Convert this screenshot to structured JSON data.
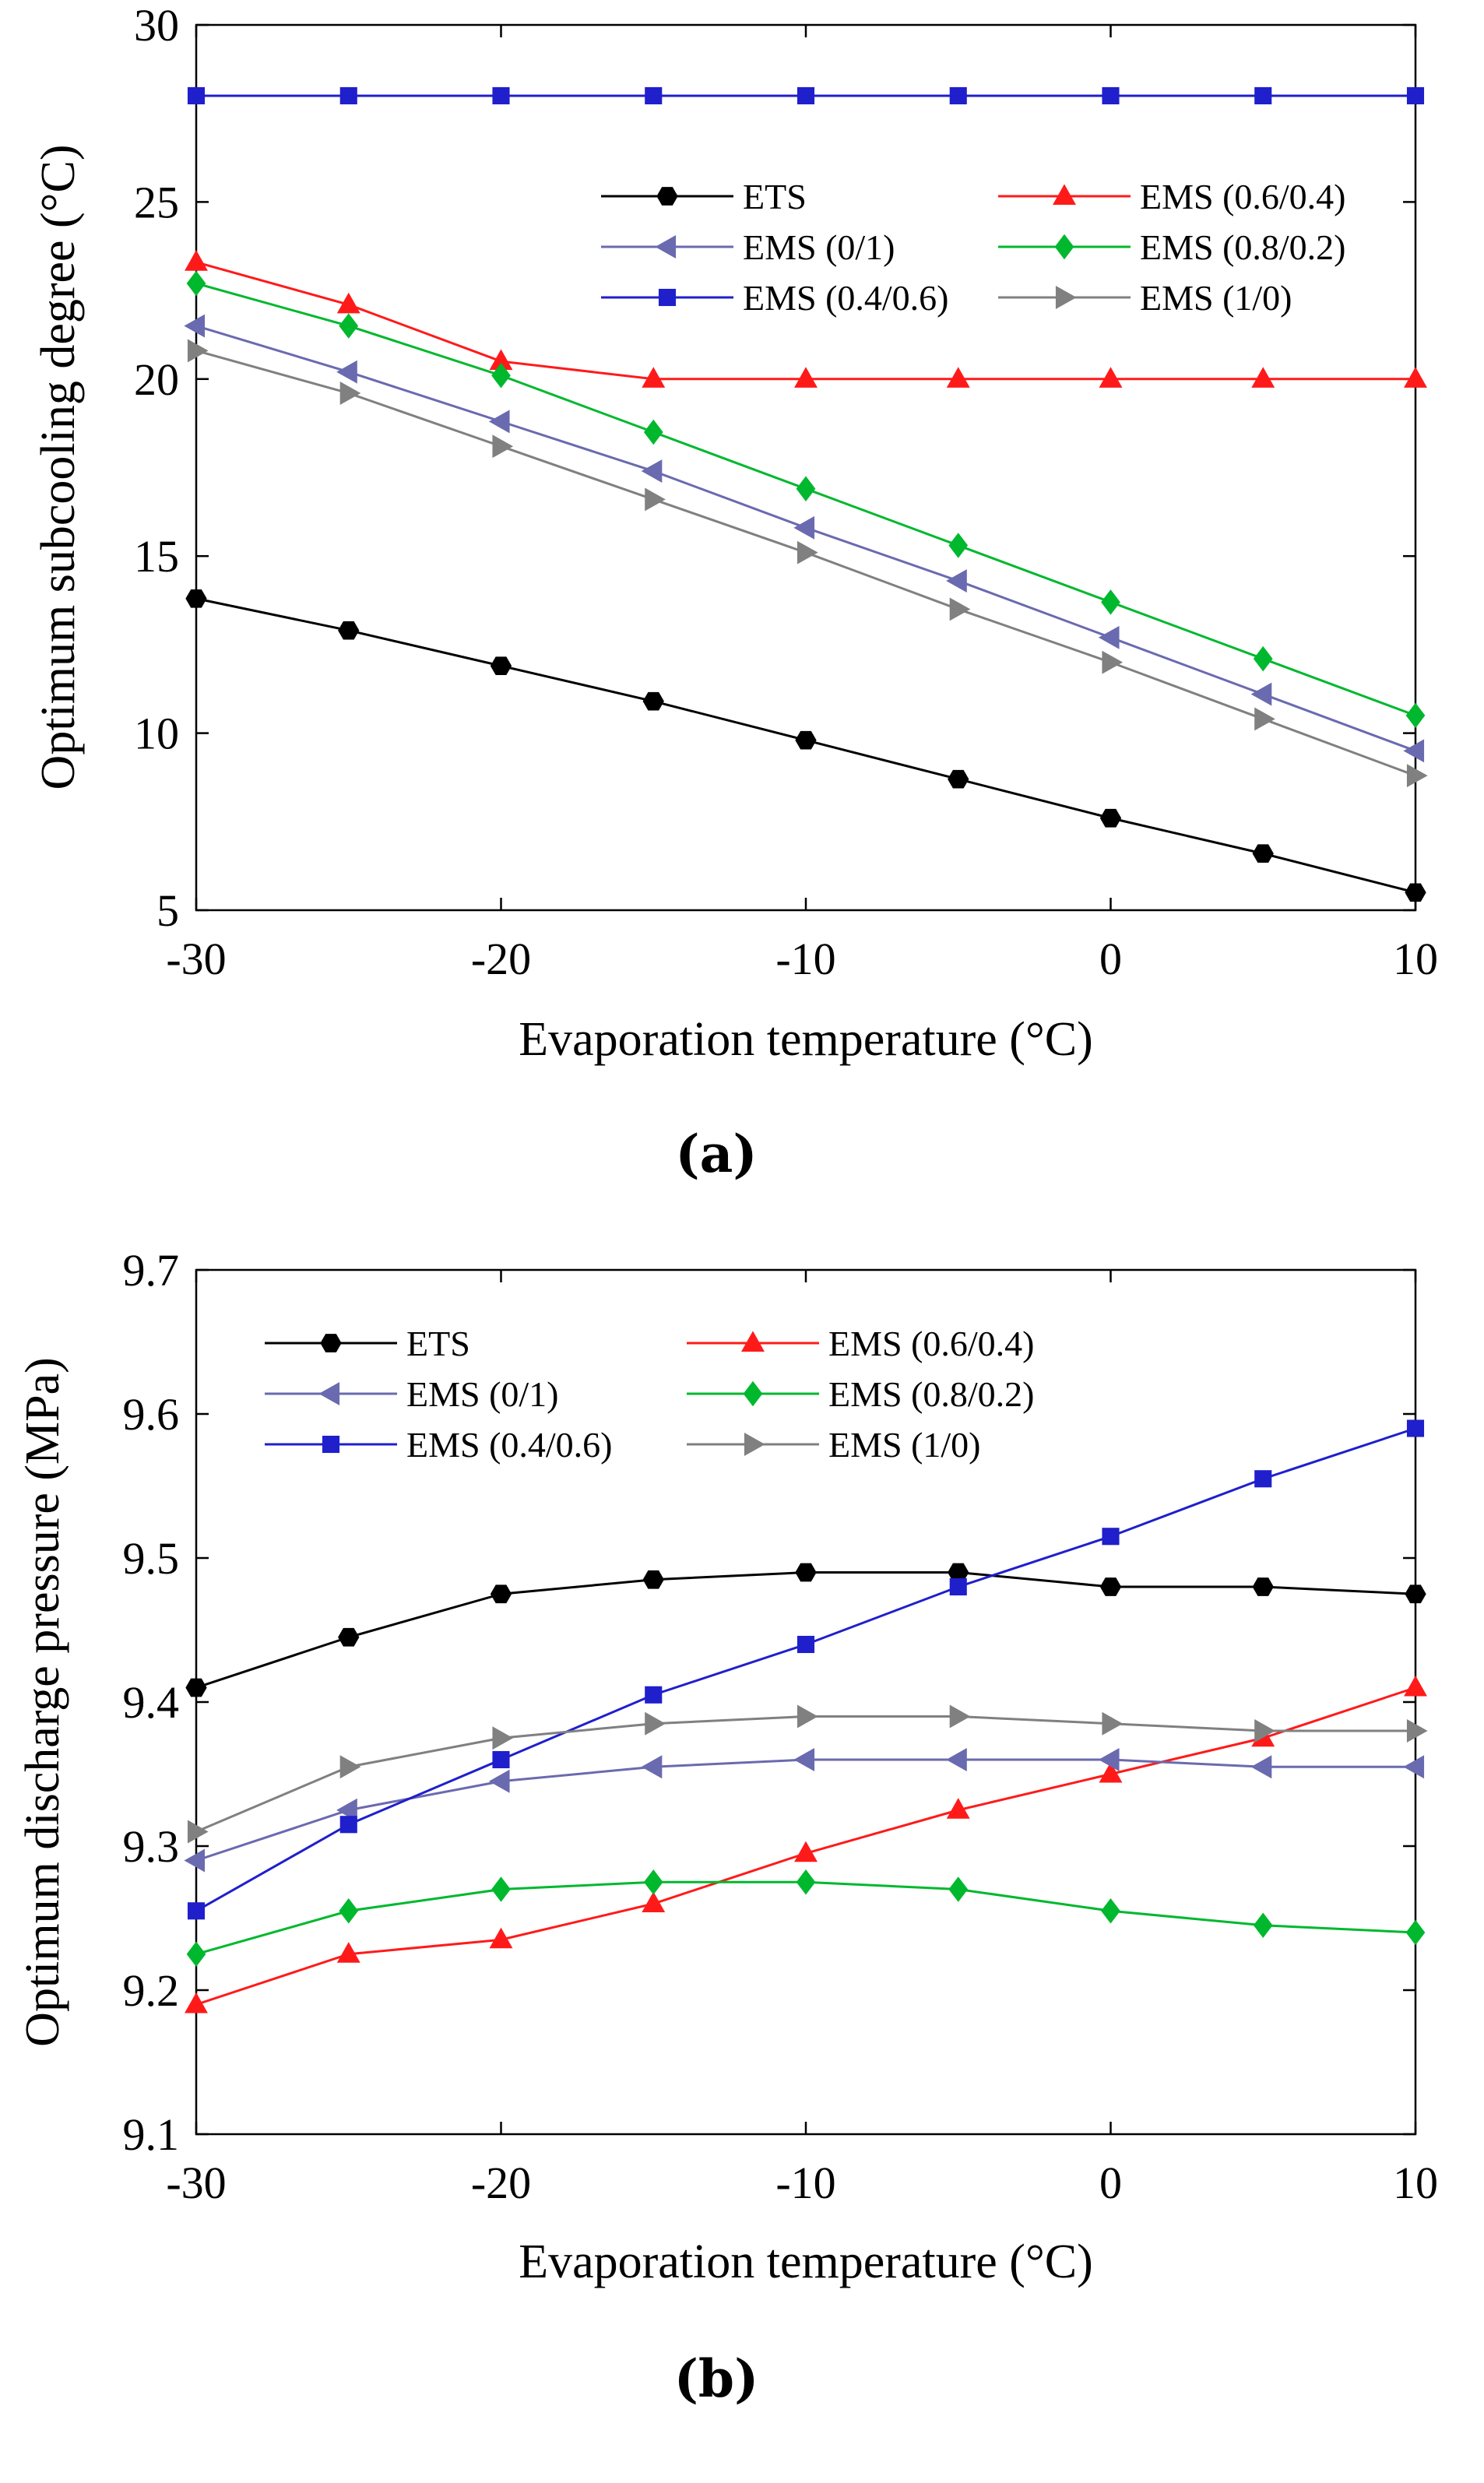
{
  "chart_data": [
    {
      "type": "line",
      "panel_label": "(a)",
      "xlabel": "Evaporation temperature (°C)",
      "ylabel": "Optimum subcooling degree (°C)",
      "xlim": [
        -30,
        10
      ],
      "ylim": [
        5,
        30
      ],
      "xticks": [
        -30,
        -20,
        -10,
        0,
        10
      ],
      "yticks": [
        5,
        10,
        15,
        20,
        25,
        30
      ],
      "x": [
        -30,
        -25,
        -20,
        -15,
        -10,
        -5,
        0,
        5,
        10
      ],
      "legend_position": "top-right",
      "series": [
        {
          "name": "ETS",
          "color": "#000000",
          "marker": "hexagon",
          "values": [
            13.8,
            12.9,
            11.9,
            10.9,
            9.8,
            8.7,
            7.6,
            6.6,
            5.5
          ]
        },
        {
          "name": "EMS (0.6/0.4)",
          "color": "#ff1a1a",
          "marker": "triangle-up",
          "values": [
            23.3,
            22.1,
            20.5,
            20.0,
            20.0,
            20.0,
            20.0,
            20.0,
            20.0
          ]
        },
        {
          "name": "EMS (0/1)",
          "color": "#6a6ab0",
          "marker": "triangle-left",
          "values": [
            21.5,
            20.2,
            18.8,
            17.4,
            15.8,
            14.3,
            12.7,
            11.1,
            9.5
          ]
        },
        {
          "name": "EMS (0.8/0.2)",
          "color": "#00b82e",
          "marker": "diamond",
          "values": [
            22.7,
            21.5,
            20.1,
            18.5,
            16.9,
            15.3,
            13.7,
            12.1,
            10.5
          ]
        },
        {
          "name": "EMS (0.4/0.6)",
          "color": "#1f1fcc",
          "marker": "square",
          "values": [
            28.0,
            28.0,
            28.0,
            28.0,
            28.0,
            28.0,
            28.0,
            28.0,
            28.0
          ]
        },
        {
          "name": "EMS (1/0)",
          "color": "#808080",
          "marker": "triangle-right",
          "values": [
            20.8,
            19.6,
            18.1,
            16.6,
            15.1,
            13.5,
            12.0,
            10.4,
            8.8
          ]
        }
      ]
    },
    {
      "type": "line",
      "panel_label": "(b)",
      "xlabel": "Evaporation temperature (°C)",
      "ylabel": "Optimum discharge pressure (MPa)",
      "xlim": [
        -30,
        10
      ],
      "ylim": [
        9.1,
        9.7
      ],
      "xticks": [
        -30,
        -20,
        -10,
        0,
        10
      ],
      "yticks": [
        9.1,
        9.2,
        9.3,
        9.4,
        9.5,
        9.6,
        9.7
      ],
      "x": [
        -30,
        -25,
        -20,
        -15,
        -10,
        -5,
        0,
        5,
        10
      ],
      "legend_position": "top-left",
      "series": [
        {
          "name": "ETS",
          "color": "#000000",
          "marker": "hexagon",
          "values": [
            9.41,
            9.445,
            9.475,
            9.485,
            9.49,
            9.49,
            9.48,
            9.48,
            9.475
          ]
        },
        {
          "name": "EMS (0.6/0.4)",
          "color": "#ff1a1a",
          "marker": "triangle-up",
          "values": [
            9.19,
            9.225,
            9.235,
            9.26,
            9.295,
            9.325,
            9.35,
            9.375,
            9.41
          ]
        },
        {
          "name": "EMS (0/1)",
          "color": "#6a6ab0",
          "marker": "triangle-left",
          "values": [
            9.29,
            9.325,
            9.345,
            9.355,
            9.36,
            9.36,
            9.36,
            9.355,
            9.355
          ]
        },
        {
          "name": "EMS (0.8/0.2)",
          "color": "#00b82e",
          "marker": "diamond",
          "values": [
            9.225,
            9.255,
            9.27,
            9.275,
            9.275,
            9.27,
            9.255,
            9.245,
            9.24
          ]
        },
        {
          "name": "EMS (0.4/0.6)",
          "color": "#1f1fcc",
          "marker": "square",
          "values": [
            9.255,
            9.315,
            9.36,
            9.405,
            9.44,
            9.48,
            9.515,
            9.555,
            9.59
          ]
        },
        {
          "name": "EMS (1/0)",
          "color": "#808080",
          "marker": "triangle-right",
          "values": [
            9.31,
            9.355,
            9.375,
            9.385,
            9.39,
            9.39,
            9.385,
            9.38,
            9.38
          ]
        }
      ]
    }
  ]
}
